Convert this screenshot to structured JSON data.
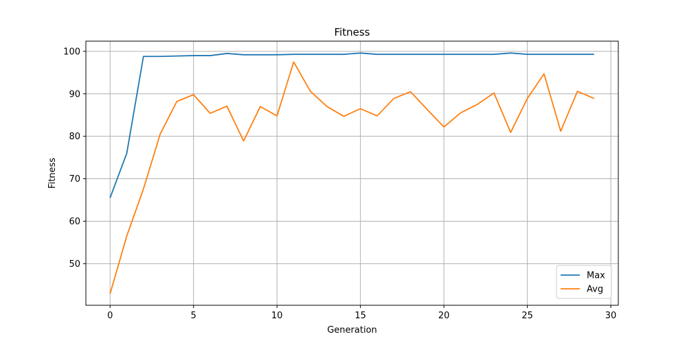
{
  "chart_data": {
    "type": "line",
    "title": "Fitness",
    "xlabel": "Generation",
    "ylabel": "Fitness",
    "xlim": [
      -1.45,
      30.45
    ],
    "ylim": [
      40.2,
      102.4
    ],
    "xticks": [
      0,
      5,
      10,
      15,
      20,
      25,
      30
    ],
    "yticks": [
      50,
      60,
      70,
      80,
      90,
      100
    ],
    "grid": true,
    "legend_position": "lower-right",
    "x": [
      0,
      1,
      2,
      3,
      4,
      5,
      6,
      7,
      8,
      9,
      10,
      11,
      12,
      13,
      14,
      15,
      16,
      17,
      18,
      19,
      20,
      21,
      22,
      23,
      24,
      25,
      26,
      27,
      28,
      29
    ],
    "series": [
      {
        "name": "Max",
        "color": "#1f77b4",
        "values": [
          65.5,
          76.0,
          98.8,
          98.8,
          98.9,
          99.0,
          99.0,
          99.5,
          99.2,
          99.2,
          99.2,
          99.3,
          99.3,
          99.3,
          99.3,
          99.6,
          99.3,
          99.3,
          99.3,
          99.3,
          99.3,
          99.3,
          99.3,
          99.3,
          99.6,
          99.3,
          99.3,
          99.3,
          99.3,
          99.3
        ]
      },
      {
        "name": "Avg",
        "color": "#ff7f0e",
        "values": [
          42.9,
          56.5,
          67.6,
          80.5,
          88.2,
          89.8,
          85.4,
          87.1,
          78.9,
          87.0,
          84.8,
          97.5,
          90.6,
          87.0,
          84.7,
          86.5,
          84.8,
          88.9,
          90.5,
          86.3,
          82.2,
          85.5,
          87.5,
          90.2,
          80.9,
          88.9,
          94.7,
          81.2,
          90.6,
          88.9
        ]
      }
    ]
  }
}
